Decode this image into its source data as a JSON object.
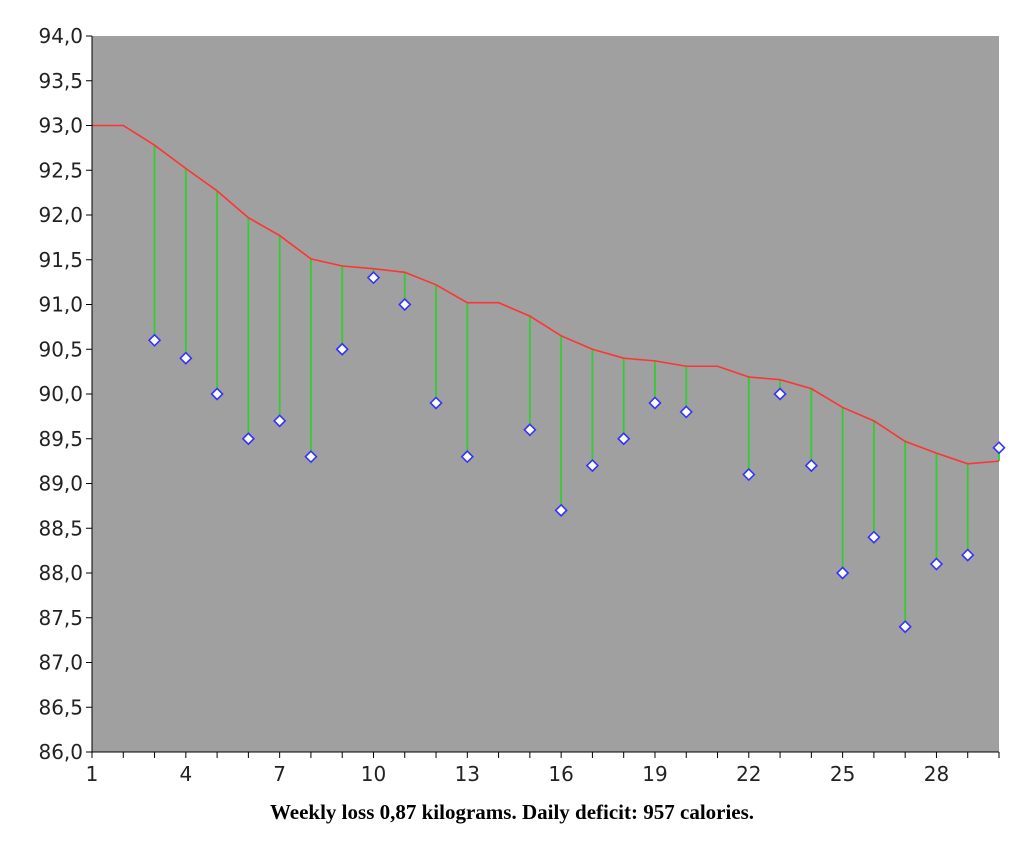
{
  "chart_data": {
    "type": "line",
    "caption": "Weekly loss 0,87 kilograms. Daily deficit: 957 calories.",
    "x": [
      1,
      2,
      3,
      4,
      5,
      6,
      7,
      8,
      9,
      10,
      11,
      12,
      13,
      14,
      15,
      16,
      17,
      18,
      19,
      20,
      21,
      22,
      23,
      24,
      25,
      26,
      27,
      28,
      29,
      30
    ],
    "x_ticks": [
      "1",
      "4",
      "7",
      "10",
      "13",
      "16",
      "19",
      "22",
      "25",
      "28"
    ],
    "x_tick_values": [
      1,
      4,
      7,
      10,
      13,
      16,
      19,
      22,
      25,
      28
    ],
    "xlim": [
      1,
      30
    ],
    "ylim": [
      86.0,
      94.0
    ],
    "y_ticks": [
      "86,0",
      "86,5",
      "87,0",
      "87,5",
      "88,0",
      "88,5",
      "89,0",
      "89,5",
      "90,0",
      "90,5",
      "91,0",
      "91,5",
      "92,0",
      "92,5",
      "93,0",
      "93,5",
      "94,0"
    ],
    "y_tick_values": [
      86.0,
      86.5,
      87.0,
      87.5,
      88.0,
      88.5,
      89.0,
      89.5,
      90.0,
      90.5,
      91.0,
      91.5,
      92.0,
      92.5,
      93.0,
      93.5,
      94.0
    ],
    "grid": false,
    "series": [
      {
        "role": "trend",
        "color": "#ff3333",
        "values": [
          93.0,
          93.0,
          92.78,
          92.52,
          92.27,
          91.97,
          91.77,
          91.51,
          91.43,
          91.4,
          91.36,
          91.22,
          91.02,
          91.02,
          90.87,
          90.65,
          90.5,
          90.4,
          90.37,
          90.31,
          90.31,
          90.19,
          90.16,
          90.06,
          89.85,
          89.7,
          89.47,
          89.34,
          89.22,
          89.25
        ]
      },
      {
        "role": "measured",
        "color": "#3333ff",
        "x": [
          3,
          4,
          5,
          6,
          7,
          8,
          9,
          10,
          11,
          12,
          13,
          15,
          16,
          17,
          18,
          19,
          20,
          22,
          23,
          24,
          25,
          26,
          27,
          28,
          29,
          30
        ],
        "values": [
          90.6,
          90.4,
          90.0,
          89.5,
          89.7,
          89.3,
          90.5,
          91.3,
          91.0,
          89.9,
          89.3,
          89.6,
          88.7,
          89.2,
          89.5,
          89.9,
          89.8,
          89.1,
          90.0,
          89.2,
          88.0,
          88.4,
          87.4,
          88.1,
          88.2,
          89.4
        ]
      }
    ],
    "colors": {
      "plot_bg": "#a0a0a0",
      "trend": "#ff3333",
      "drop_line": "#33cc33",
      "marker_fill": "#ffffff",
      "marker_stroke": "#3333ff"
    }
  }
}
